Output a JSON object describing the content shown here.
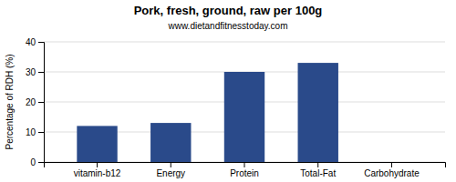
{
  "chart_data": {
    "type": "bar",
    "title": "Pork, fresh, ground, raw per 100g",
    "subtitle": "www.dietandfitnesstoday.com",
    "ylabel": "Percentage of RDH (%)",
    "categories": [
      "vitamin-b12",
      "Energy",
      "Protein",
      "Total-Fat",
      "Carbohydrate"
    ],
    "values": [
      12,
      13,
      30,
      33,
      0
    ],
    "color": "#2a4a8a",
    "ylim": [
      0,
      40
    ],
    "yticks": [
      0,
      10,
      20,
      30,
      40
    ],
    "grid": true
  }
}
